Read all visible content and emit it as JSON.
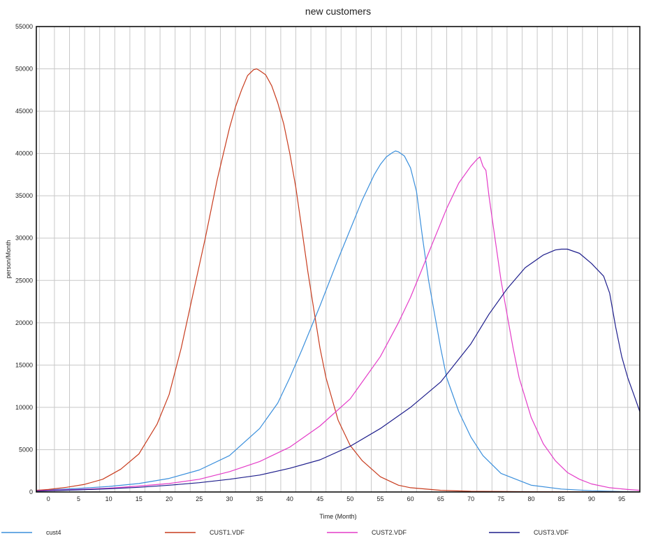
{
  "chart_data": {
    "type": "line",
    "title": "new customers",
    "xlabel": "Time (Month)",
    "ylabel": "person/Month",
    "xlim": [
      -2,
      98
    ],
    "ylim": [
      0,
      55000
    ],
    "x_ticks": [
      "0",
      "5",
      "10",
      "15",
      "20",
      "25",
      "30",
      "35",
      "40",
      "45",
      "50",
      "55",
      "60",
      "65",
      "70",
      "75",
      "80",
      "85",
      "90",
      "95"
    ],
    "y_ticks": [
      "0",
      "5000",
      "10000",
      "15000",
      "20000",
      "25000",
      "30000",
      "35000",
      "40000",
      "45000",
      "50000",
      "55000"
    ],
    "grid": true,
    "legend_position": "bottom",
    "series": [
      {
        "name": "cust4",
        "color": "#3a8fdc",
        "points": [
          [
            -2,
            200
          ],
          [
            0,
            250
          ],
          [
            5,
            420
          ],
          [
            10,
            650
          ],
          [
            15,
            1000
          ],
          [
            20,
            1600
          ],
          [
            25,
            2600
          ],
          [
            30,
            4300
          ],
          [
            35,
            7500
          ],
          [
            38,
            10500
          ],
          [
            40,
            13500
          ],
          [
            42,
            16800
          ],
          [
            45,
            22000
          ],
          [
            48,
            27500
          ],
          [
            50,
            31000
          ],
          [
            52,
            34500
          ],
          [
            54,
            37500
          ],
          [
            55,
            38700
          ],
          [
            56,
            39600
          ],
          [
            57,
            40100
          ],
          [
            57.5,
            40300
          ],
          [
            58,
            40200
          ],
          [
            59,
            39700
          ],
          [
            60,
            38300
          ],
          [
            61,
            35500
          ],
          [
            62,
            30000
          ],
          [
            63,
            25000
          ],
          [
            64,
            21000
          ],
          [
            65,
            17000
          ],
          [
            66,
            13500
          ],
          [
            68,
            9500
          ],
          [
            70,
            6500
          ],
          [
            72,
            4300
          ],
          [
            75,
            2200
          ],
          [
            80,
            800
          ],
          [
            85,
            350
          ],
          [
            90,
            150
          ],
          [
            95,
            60
          ],
          [
            98,
            30
          ]
        ]
      },
      {
        "name": "CUST1.VDF",
        "color": "#c83c1e",
        "points": [
          [
            -2,
            200
          ],
          [
            0,
            300
          ],
          [
            3,
            550
          ],
          [
            6,
            900
          ],
          [
            9,
            1500
          ],
          [
            12,
            2700
          ],
          [
            15,
            4500
          ],
          [
            18,
            8000
          ],
          [
            20,
            11500
          ],
          [
            22,
            17000
          ],
          [
            24,
            23500
          ],
          [
            26,
            30000
          ],
          [
            28,
            37000
          ],
          [
            30,
            43000
          ],
          [
            31,
            45500
          ],
          [
            32,
            47500
          ],
          [
            33,
            49200
          ],
          [
            34,
            49900
          ],
          [
            34.5,
            50000
          ],
          [
            35,
            49800
          ],
          [
            36,
            49300
          ],
          [
            37,
            48000
          ],
          [
            38,
            46000
          ],
          [
            39,
            43500
          ],
          [
            40,
            40000
          ],
          [
            41,
            36000
          ],
          [
            42,
            31000
          ],
          [
            43,
            26000
          ],
          [
            44,
            21500
          ],
          [
            45,
            17000
          ],
          [
            46,
            13500
          ],
          [
            48,
            8500
          ],
          [
            50,
            5500
          ],
          [
            52,
            3700
          ],
          [
            55,
            1800
          ],
          [
            58,
            800
          ],
          [
            60,
            500
          ],
          [
            65,
            200
          ],
          [
            70,
            80
          ],
          [
            80,
            30
          ],
          [
            98,
            10
          ]
        ]
      },
      {
        "name": "CUST2.VDF",
        "color": "#e43cc8",
        "points": [
          [
            -2,
            150
          ],
          [
            0,
            200
          ],
          [
            5,
            300
          ],
          [
            10,
            450
          ],
          [
            15,
            700
          ],
          [
            20,
            1000
          ],
          [
            25,
            1500
          ],
          [
            30,
            2400
          ],
          [
            35,
            3600
          ],
          [
            40,
            5300
          ],
          [
            45,
            7800
          ],
          [
            50,
            11000
          ],
          [
            55,
            16000
          ],
          [
            58,
            20000
          ],
          [
            60,
            23000
          ],
          [
            62,
            26500
          ],
          [
            64,
            30000
          ],
          [
            66,
            33500
          ],
          [
            68,
            36500
          ],
          [
            70,
            38500
          ],
          [
            71,
            39300
          ],
          [
            71.5,
            39600
          ],
          [
            72,
            38500
          ],
          [
            72.5,
            38000
          ],
          [
            73,
            35000
          ],
          [
            74,
            30000
          ],
          [
            75,
            25000
          ],
          [
            76,
            21000
          ],
          [
            77,
            17000
          ],
          [
            78,
            13500
          ],
          [
            80,
            8800
          ],
          [
            82,
            5700
          ],
          [
            84,
            3700
          ],
          [
            86,
            2300
          ],
          [
            88,
            1500
          ],
          [
            90,
            950
          ],
          [
            93,
            500
          ],
          [
            96,
            300
          ],
          [
            98,
            200
          ]
        ]
      },
      {
        "name": "CUST3.VDF",
        "color": "#1e1e8c",
        "points": [
          [
            -2,
            100
          ],
          [
            0,
            150
          ],
          [
            5,
            250
          ],
          [
            10,
            380
          ],
          [
            15,
            550
          ],
          [
            20,
            800
          ],
          [
            25,
            1100
          ],
          [
            30,
            1500
          ],
          [
            35,
            2000
          ],
          [
            40,
            2800
          ],
          [
            45,
            3800
          ],
          [
            50,
            5400
          ],
          [
            55,
            7500
          ],
          [
            60,
            10000
          ],
          [
            65,
            13000
          ],
          [
            70,
            17500
          ],
          [
            73,
            21000
          ],
          [
            76,
            24000
          ],
          [
            79,
            26500
          ],
          [
            82,
            28000
          ],
          [
            84,
            28600
          ],
          [
            85,
            28700
          ],
          [
            86,
            28700
          ],
          [
            88,
            28200
          ],
          [
            90,
            27000
          ],
          [
            92,
            25500
          ],
          [
            93,
            23500
          ],
          [
            94,
            19500
          ],
          [
            95,
            16000
          ],
          [
            96,
            13500
          ],
          [
            97,
            11500
          ],
          [
            98,
            9500
          ]
        ]
      }
    ]
  }
}
